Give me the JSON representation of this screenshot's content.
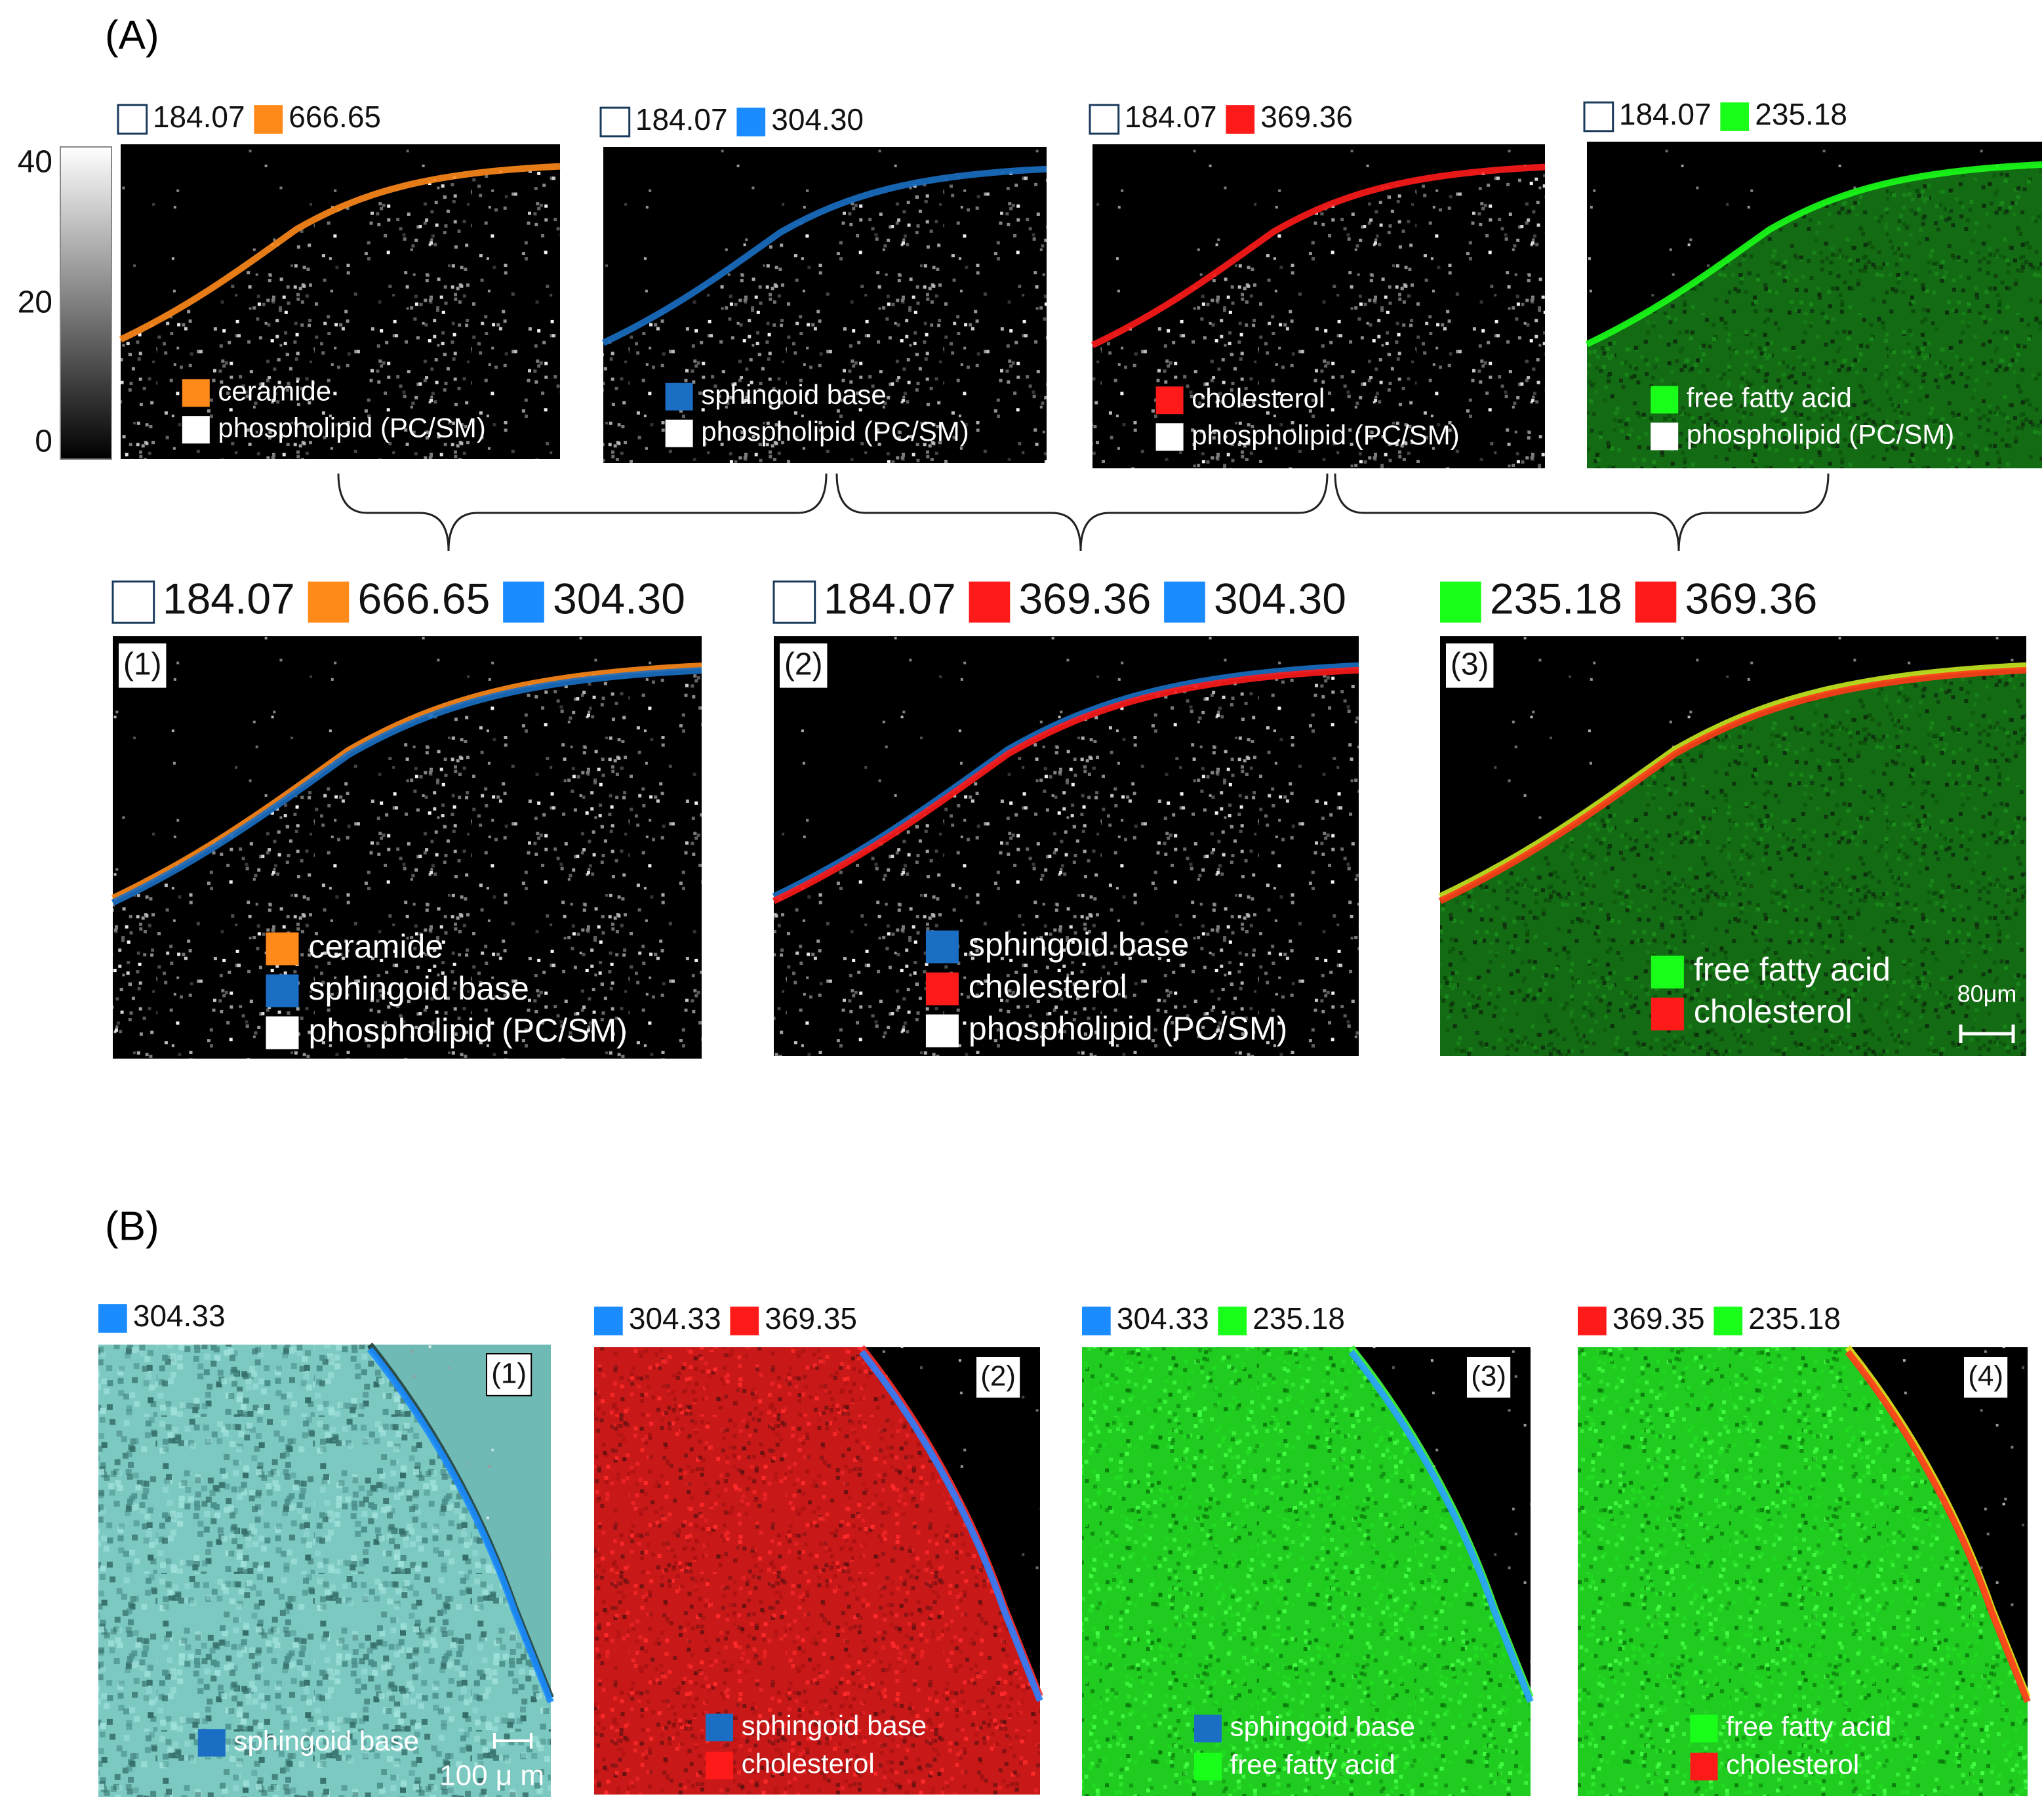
{
  "panel_a": {
    "label": "(A)",
    "colorbar_ticks": [
      40,
      20,
      0
    ],
    "singles": [
      {
        "header": [
          {
            "mz": "184.07",
            "color": "#ffffff"
          },
          {
            "mz": "666.65",
            "color": "#ff8a1a"
          }
        ],
        "legend": [
          {
            "text": "ceramide",
            "color": "#ff8a1a"
          },
          {
            "text": "phospholipid (PC/SM)",
            "color": "#ffffff"
          }
        ]
      },
      {
        "header": [
          {
            "mz": "184.07",
            "color": "#ffffff"
          },
          {
            "mz": "304.30",
            "color": "#1a8cff"
          }
        ],
        "legend": [
          {
            "text": "sphingoid base",
            "color": "#1a6fc4"
          },
          {
            "text": "phospholipid (PC/SM)",
            "color": "#ffffff"
          }
        ]
      },
      {
        "header": [
          {
            "mz": "184.07",
            "color": "#ffffff"
          },
          {
            "mz": "369.36",
            "color": "#ff1a1a"
          }
        ],
        "legend": [
          {
            "text": "cholesterol",
            "color": "#ff1a1a"
          },
          {
            "text": "phospholipid (PC/SM)",
            "color": "#ffffff"
          }
        ]
      },
      {
        "header": [
          {
            "mz": "184.07",
            "color": "#ffffff"
          },
          {
            "mz": "235.18",
            "color": "#1aff1a"
          }
        ],
        "legend": [
          {
            "text": "free fatty acid",
            "color": "#1aff1a"
          },
          {
            "text": "phospholipid (PC/SM)",
            "color": "#ffffff"
          }
        ]
      }
    ],
    "combined": [
      {
        "tag": "(1)",
        "header": [
          {
            "mz": "184.07",
            "color": "#ffffff"
          },
          {
            "mz": "666.65",
            "color": "#ff8a1a"
          },
          {
            "mz": "304.30",
            "color": "#1a8cff"
          }
        ],
        "legend": [
          {
            "text": "ceramide",
            "color": "#ff8a1a"
          },
          {
            "text": "sphingoid base",
            "color": "#1a6fc4"
          },
          {
            "text": "phospholipid (PC/SM)",
            "color": "#ffffff"
          }
        ]
      },
      {
        "tag": "(2)",
        "header": [
          {
            "mz": "184.07",
            "color": "#ffffff"
          },
          {
            "mz": "369.36",
            "color": "#ff1a1a"
          },
          {
            "mz": "304.30",
            "color": "#1a8cff"
          }
        ],
        "legend": [
          {
            "text": "sphingoid base",
            "color": "#1a6fc4"
          },
          {
            "text": "cholesterol",
            "color": "#ff1a1a"
          },
          {
            "text": "phospholipid (PC/SM)",
            "color": "#ffffff"
          }
        ]
      },
      {
        "tag": "(3)",
        "header": [
          {
            "mz": "235.18",
            "color": "#1aff1a"
          },
          {
            "mz": "369.36",
            "color": "#ff1a1a"
          }
        ],
        "legend": [
          {
            "text": "free fatty acid",
            "color": "#1aff1a"
          },
          {
            "text": "cholesterol",
            "color": "#ff1a1a"
          }
        ],
        "scale_bar": "80μm"
      }
    ]
  },
  "panel_b": {
    "label": "(B)",
    "images": [
      {
        "tag": "(1)",
        "header": [
          {
            "mz": "304.33",
            "color": "#1a8cff"
          }
        ],
        "legend": [
          {
            "text": "sphingoid base",
            "color": "#1a6fc4"
          }
        ],
        "scale_bar": "100 μ m"
      },
      {
        "tag": "(2)",
        "header": [
          {
            "mz": "304.33",
            "color": "#1a8cff"
          },
          {
            "mz": "369.35",
            "color": "#ff1a1a"
          }
        ],
        "legend": [
          {
            "text": "sphingoid base",
            "color": "#1a6fc4"
          },
          {
            "text": "cholesterol",
            "color": "#ff1a1a"
          }
        ]
      },
      {
        "tag": "(3)",
        "header": [
          {
            "mz": "304.33",
            "color": "#1a8cff"
          },
          {
            "mz": "235.18",
            "color": "#1aff1a"
          }
        ],
        "legend": [
          {
            "text": "sphingoid base",
            "color": "#1a6fc4"
          },
          {
            "text": "free fatty acid",
            "color": "#1aff1a"
          }
        ]
      },
      {
        "tag": "(4)",
        "header": [
          {
            "mz": "369.35",
            "color": "#ff1a1a"
          },
          {
            "mz": "235.18",
            "color": "#1aff1a"
          }
        ],
        "legend": [
          {
            "text": "free fatty acid",
            "color": "#1aff1a"
          },
          {
            "text": "cholesterol",
            "color": "#ff1a1a"
          }
        ]
      }
    ]
  }
}
